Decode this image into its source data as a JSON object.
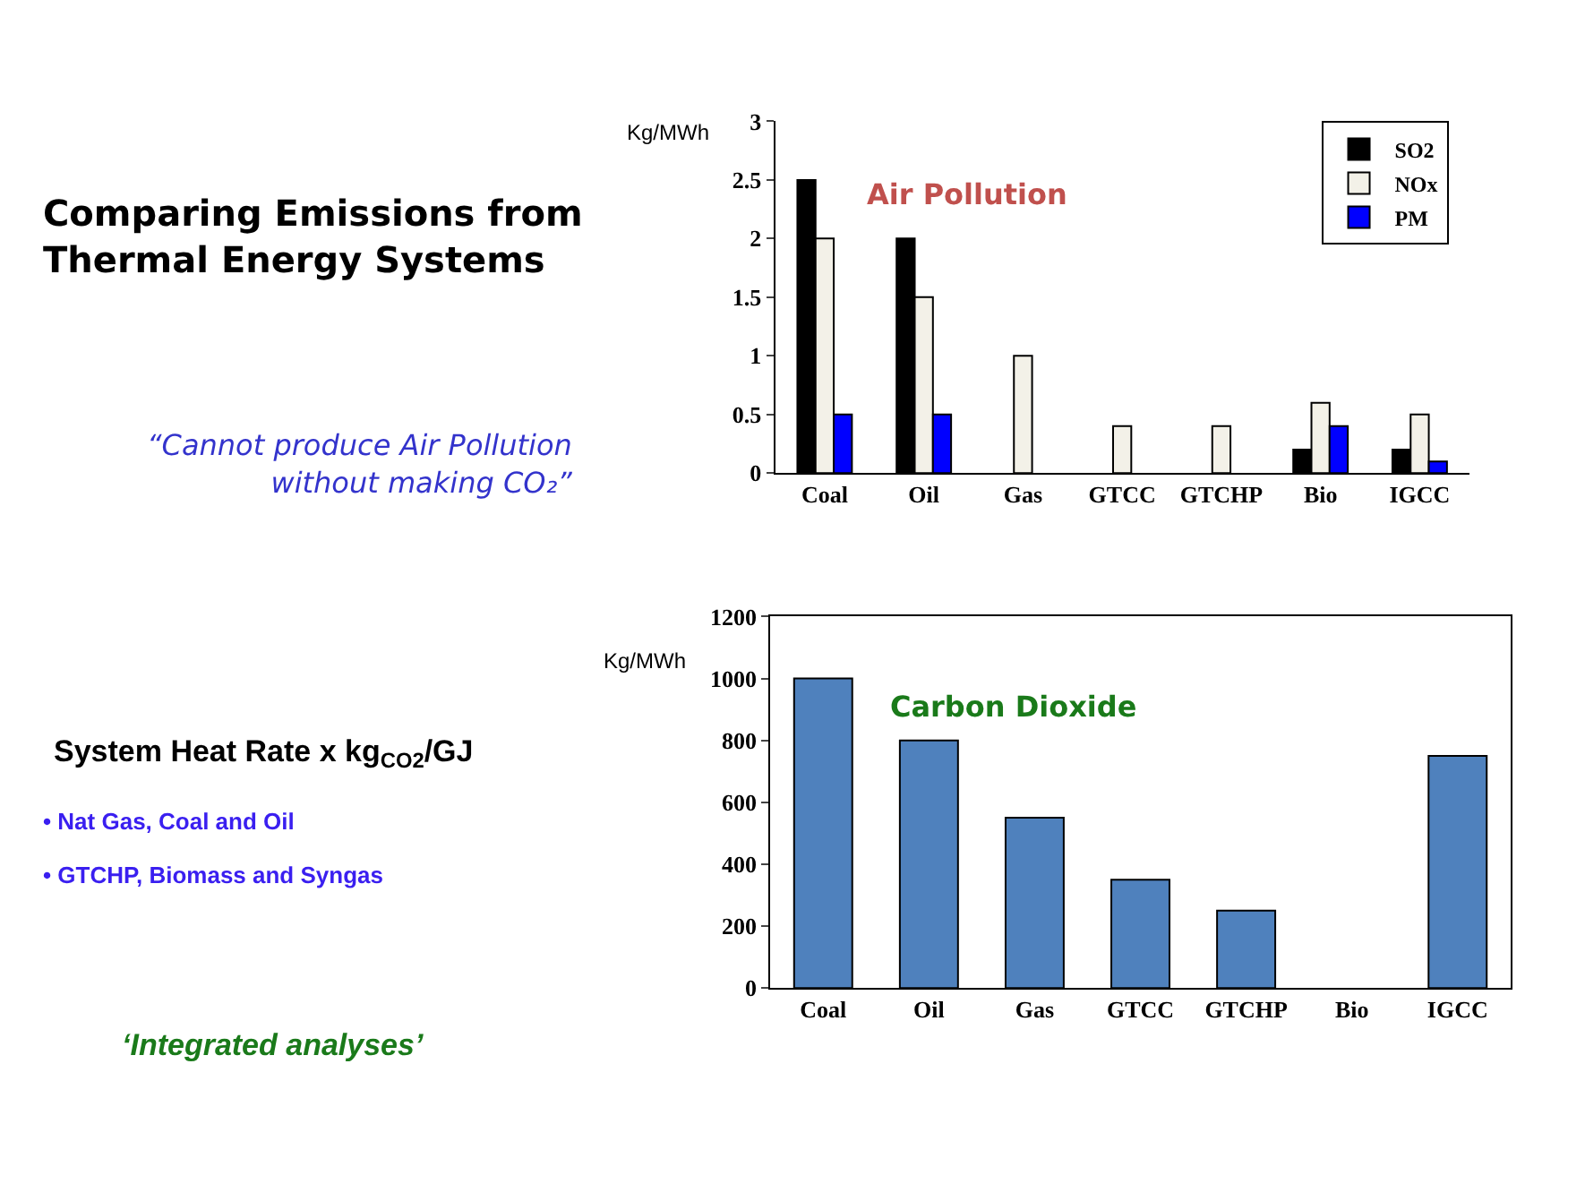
{
  "chart_data": [
    {
      "type": "other",
      "title": "Comparing Emissions from\nThermal Energy Systems",
      "annotations": [
        "“Cannot produce Air Pollution\nwithout making CO₂”",
        "System Heat Rate x kg$_{CO2}$/GJ",
        "• Nat Gas, Coal and Oil",
        "• GTCHP, Biomass and Syngas",
        "‘Integrated analyses’"
      ]
    },
    {
      "type": "bar",
      "title": "Air Pollution",
      "ylabel": "Kg/MWh",
      "categories": [
        "Coal",
        "Oil",
        "Gas",
        "GTCC",
        "GTCHP",
        "Bio",
        "IGCC"
      ],
      "series": [
        {
          "name": "SO2",
          "color": "#000000",
          "values": [
            2.5,
            2.0,
            null,
            null,
            null,
            0.2,
            0.2
          ]
        },
        {
          "name": "NOx",
          "color": "#f3f1e8",
          "values": [
            2.0,
            1.5,
            1.0,
            0.4,
            0.4,
            0.6,
            0.5
          ]
        },
        {
          "name": "PM",
          "color": "#0000ff",
          "values": [
            0.5,
            0.5,
            null,
            null,
            null,
            0.4,
            0.1
          ]
        }
      ],
      "ylim": [
        0,
        3
      ],
      "yticks": [
        0,
        0.5,
        1,
        1.5,
        2,
        2.5,
        3
      ],
      "legend": "top right"
    },
    {
      "type": "bar",
      "title": "Carbon Dioxide",
      "ylabel": "Kg/MWh",
      "categories": [
        "Coal",
        "Oil",
        "Gas",
        "GTCC",
        "GTCHP",
        "Bio",
        "IGCC"
      ],
      "series": [
        {
          "color": "#4f81bd",
          "values": [
            1000,
            800,
            550,
            350,
            250,
            null,
            750
          ]
        }
      ],
      "ylim": [
        0,
        1200
      ],
      "yticks": [
        0,
        200,
        400,
        600,
        800,
        1000,
        1200
      ]
    }
  ]
}
